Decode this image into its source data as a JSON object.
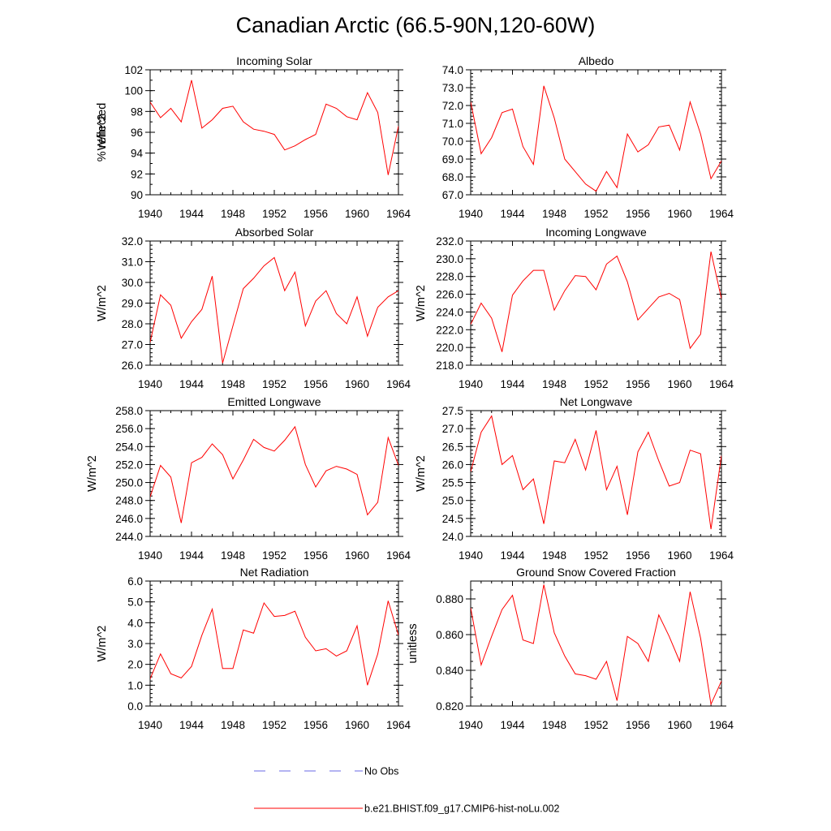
{
  "title": "Canadian Arctic (66.5-90N,120-60W)",
  "colors": {
    "model": "#ff0000",
    "obs": "#6a6ae6",
    "axis": "#000000"
  },
  "legend": [
    {
      "label": "No Obs",
      "style": "dashed",
      "color": "#6a6ae6"
    },
    {
      "label": "b.e21.BHIST.f09_g17.CMIP6-hist-noLu.002",
      "style": "solid",
      "color": "#ff0000"
    }
  ],
  "chart_data": [
    {
      "type": "line",
      "title": "Incoming Solar",
      "ylabel": "W/m^2",
      "xlim": [
        1940,
        1964
      ],
      "ylim": [
        90,
        102
      ],
      "xticks": [
        1940,
        1944,
        1948,
        1952,
        1956,
        1960,
        1964
      ],
      "yticks": [
        "90",
        "92",
        "94",
        "96",
        "98",
        "100",
        "102"
      ],
      "yminor": 1,
      "series": [
        {
          "values": [
            98.9,
            97.4,
            98.3,
            97.0,
            101.0,
            96.4,
            97.2,
            98.3,
            98.5,
            97.0,
            96.3,
            96.1,
            95.8,
            94.3,
            94.7,
            95.3,
            95.8,
            98.7,
            98.3,
            97.5,
            97.2,
            99.8,
            97.9,
            91.9,
            96.6
          ]
        }
      ],
      "x": [
        1940,
        1941,
        1942,
        1943,
        1944,
        1945,
        1946,
        1947,
        1948,
        1949,
        1950,
        1951,
        1952,
        1953,
        1954,
        1955,
        1956,
        1957,
        1958,
        1959,
        1960,
        1961,
        1962,
        1963,
        1964
      ]
    },
    {
      "type": "line",
      "title": "Albedo",
      "ylabel": "% reflected",
      "xlim": [
        1940,
        1964
      ],
      "ylim": [
        67,
        74
      ],
      "xticks": [
        1940,
        1944,
        1948,
        1952,
        1956,
        1960,
        1964
      ],
      "yticks": [
        "67.0",
        "68.0",
        "69.0",
        "70.0",
        "71.0",
        "72.0",
        "73.0",
        "74.0"
      ],
      "yminor": 0.2,
      "series": [
        {
          "values": [
            72.2,
            69.3,
            70.2,
            71.6,
            71.8,
            69.7,
            68.7,
            73.1,
            71.3,
            69.0,
            68.3,
            67.6,
            67.2,
            68.3,
            67.4,
            70.4,
            69.4,
            69.8,
            70.8,
            70.9,
            69.5,
            72.2,
            70.4,
            67.9,
            68.9
          ]
        }
      ],
      "x": [
        1940,
        1941,
        1942,
        1943,
        1944,
        1945,
        1946,
        1947,
        1948,
        1949,
        1950,
        1951,
        1952,
        1953,
        1954,
        1955,
        1956,
        1957,
        1958,
        1959,
        1960,
        1961,
        1962,
        1963,
        1964
      ]
    },
    {
      "type": "line",
      "title": "Absorbed Solar",
      "ylabel": "W/m^2",
      "xlim": [
        1940,
        1964
      ],
      "ylim": [
        26,
        32
      ],
      "xticks": [
        1940,
        1944,
        1948,
        1952,
        1956,
        1960,
        1964
      ],
      "yticks": [
        "26.0",
        "27.0",
        "28.0",
        "29.0",
        "30.0",
        "31.0",
        "32.0"
      ],
      "yminor": 0.2,
      "series": [
        {
          "values": [
            27.1,
            29.4,
            28.9,
            27.3,
            28.1,
            28.7,
            30.3,
            26.1,
            27.9,
            29.7,
            30.2,
            30.8,
            31.2,
            29.6,
            30.5,
            27.9,
            29.1,
            29.6,
            28.5,
            28.0,
            29.3,
            27.4,
            28.8,
            29.3,
            29.6
          ]
        }
      ],
      "x": [
        1940,
        1941,
        1942,
        1943,
        1944,
        1945,
        1946,
        1947,
        1948,
        1949,
        1950,
        1951,
        1952,
        1953,
        1954,
        1955,
        1956,
        1957,
        1958,
        1959,
        1960,
        1961,
        1962,
        1963,
        1964
      ]
    },
    {
      "type": "line",
      "title": "Incoming Longwave",
      "ylabel": "W/m^2",
      "xlim": [
        1940,
        1964
      ],
      "ylim": [
        218,
        232
      ],
      "xticks": [
        1940,
        1944,
        1948,
        1952,
        1956,
        1960,
        1964
      ],
      "yticks": [
        "218.0",
        "220.0",
        "222.0",
        "224.0",
        "226.0",
        "228.0",
        "230.0",
        "232.0"
      ],
      "yminor": 0.5,
      "series": [
        {
          "values": [
            222.6,
            225.0,
            223.3,
            219.5,
            225.9,
            227.5,
            228.7,
            228.7,
            224.2,
            226.4,
            228.1,
            228.0,
            226.5,
            229.4,
            230.3,
            227.4,
            223.1,
            224.4,
            225.7,
            226.1,
            225.4,
            219.9,
            221.5,
            230.8,
            225.5
          ]
        }
      ],
      "x": [
        1940,
        1941,
        1942,
        1943,
        1944,
        1945,
        1946,
        1947,
        1948,
        1949,
        1950,
        1951,
        1952,
        1953,
        1954,
        1955,
        1956,
        1957,
        1958,
        1959,
        1960,
        1961,
        1962,
        1963,
        1964
      ]
    },
    {
      "type": "line",
      "title": "Emitted Longwave",
      "ylabel": "W/m^2",
      "xlim": [
        1940,
        1964
      ],
      "ylim": [
        244,
        258
      ],
      "xticks": [
        1940,
        1944,
        1948,
        1952,
        1956,
        1960,
        1964
      ],
      "yticks": [
        "244.0",
        "246.0",
        "248.0",
        "250.0",
        "252.0",
        "254.0",
        "256.0",
        "258.0"
      ],
      "yminor": 0.5,
      "series": [
        {
          "values": [
            248.4,
            251.9,
            250.6,
            245.5,
            252.2,
            252.8,
            254.3,
            253.1,
            250.4,
            252.5,
            254.8,
            253.9,
            253.5,
            254.7,
            256.2,
            252.0,
            249.5,
            251.3,
            251.8,
            251.5,
            250.9,
            246.4,
            247.8,
            255.0,
            251.9
          ]
        }
      ],
      "x": [
        1940,
        1941,
        1942,
        1943,
        1944,
        1945,
        1946,
        1947,
        1948,
        1949,
        1950,
        1951,
        1952,
        1953,
        1954,
        1955,
        1956,
        1957,
        1958,
        1959,
        1960,
        1961,
        1962,
        1963,
        1964
      ]
    },
    {
      "type": "line",
      "title": "Net Longwave",
      "ylabel": "W/m^2",
      "xlim": [
        1940,
        1964
      ],
      "ylim": [
        24,
        27.5
      ],
      "xticks": [
        1940,
        1944,
        1948,
        1952,
        1956,
        1960,
        1964
      ],
      "yticks": [
        "24.0",
        "24.5",
        "25.0",
        "25.5",
        "26.0",
        "26.5",
        "27.0",
        "27.5"
      ],
      "yminor": 0.1,
      "series": [
        {
          "values": [
            25.8,
            26.9,
            27.35,
            26.0,
            26.25,
            25.3,
            25.6,
            24.35,
            26.1,
            26.05,
            26.7,
            25.85,
            26.95,
            25.3,
            25.95,
            24.6,
            26.35,
            26.9,
            26.1,
            25.4,
            25.5,
            26.4,
            26.3,
            24.2,
            26.25
          ]
        }
      ],
      "x": [
        1940,
        1941,
        1942,
        1943,
        1944,
        1945,
        1946,
        1947,
        1948,
        1949,
        1950,
        1951,
        1952,
        1953,
        1954,
        1955,
        1956,
        1957,
        1958,
        1959,
        1960,
        1961,
        1962,
        1963,
        1964
      ]
    },
    {
      "type": "line",
      "title": "Net Radiation",
      "ylabel": "W/m^2",
      "xlim": [
        1940,
        1964
      ],
      "ylim": [
        0,
        6
      ],
      "xticks": [
        1940,
        1944,
        1948,
        1952,
        1956,
        1960,
        1964
      ],
      "yticks": [
        "0.0",
        "1.0",
        "2.0",
        "3.0",
        "4.0",
        "5.0",
        "6.0"
      ],
      "yminor": 0.2,
      "series": [
        {
          "values": [
            1.3,
            2.5,
            1.55,
            1.35,
            1.9,
            3.4,
            4.65,
            1.8,
            1.8,
            3.65,
            3.5,
            4.95,
            4.3,
            4.35,
            4.55,
            3.3,
            2.65,
            2.75,
            2.4,
            2.65,
            3.85,
            1.0,
            2.5,
            5.05,
            3.4
          ]
        }
      ],
      "x": [
        1940,
        1941,
        1942,
        1943,
        1944,
        1945,
        1946,
        1947,
        1948,
        1949,
        1950,
        1951,
        1952,
        1953,
        1954,
        1955,
        1956,
        1957,
        1958,
        1959,
        1960,
        1961,
        1962,
        1963,
        1964
      ]
    },
    {
      "type": "line",
      "title": "Ground Snow Covered Fraction",
      "ylabel": "unitless",
      "xlim": [
        1940,
        1964
      ],
      "ylim": [
        0.82,
        0.89
      ],
      "xticks": [
        1940,
        1944,
        1948,
        1952,
        1956,
        1960,
        1964
      ],
      "yticks": [
        "0.820",
        "0.840",
        "0.860",
        "0.880"
      ],
      "yminor": 0.005,
      "series": [
        {
          "values": [
            0.875,
            0.843,
            0.859,
            0.874,
            0.882,
            0.857,
            0.855,
            0.888,
            0.861,
            0.848,
            0.838,
            0.837,
            0.835,
            0.845,
            0.823,
            0.859,
            0.855,
            0.845,
            0.871,
            0.859,
            0.845,
            0.884,
            0.858,
            0.821,
            0.834
          ]
        }
      ],
      "x": [
        1940,
        1941,
        1942,
        1943,
        1944,
        1945,
        1946,
        1947,
        1948,
        1949,
        1950,
        1951,
        1952,
        1953,
        1954,
        1955,
        1956,
        1957,
        1958,
        1959,
        1960,
        1961,
        1962,
        1963,
        1964
      ]
    }
  ]
}
